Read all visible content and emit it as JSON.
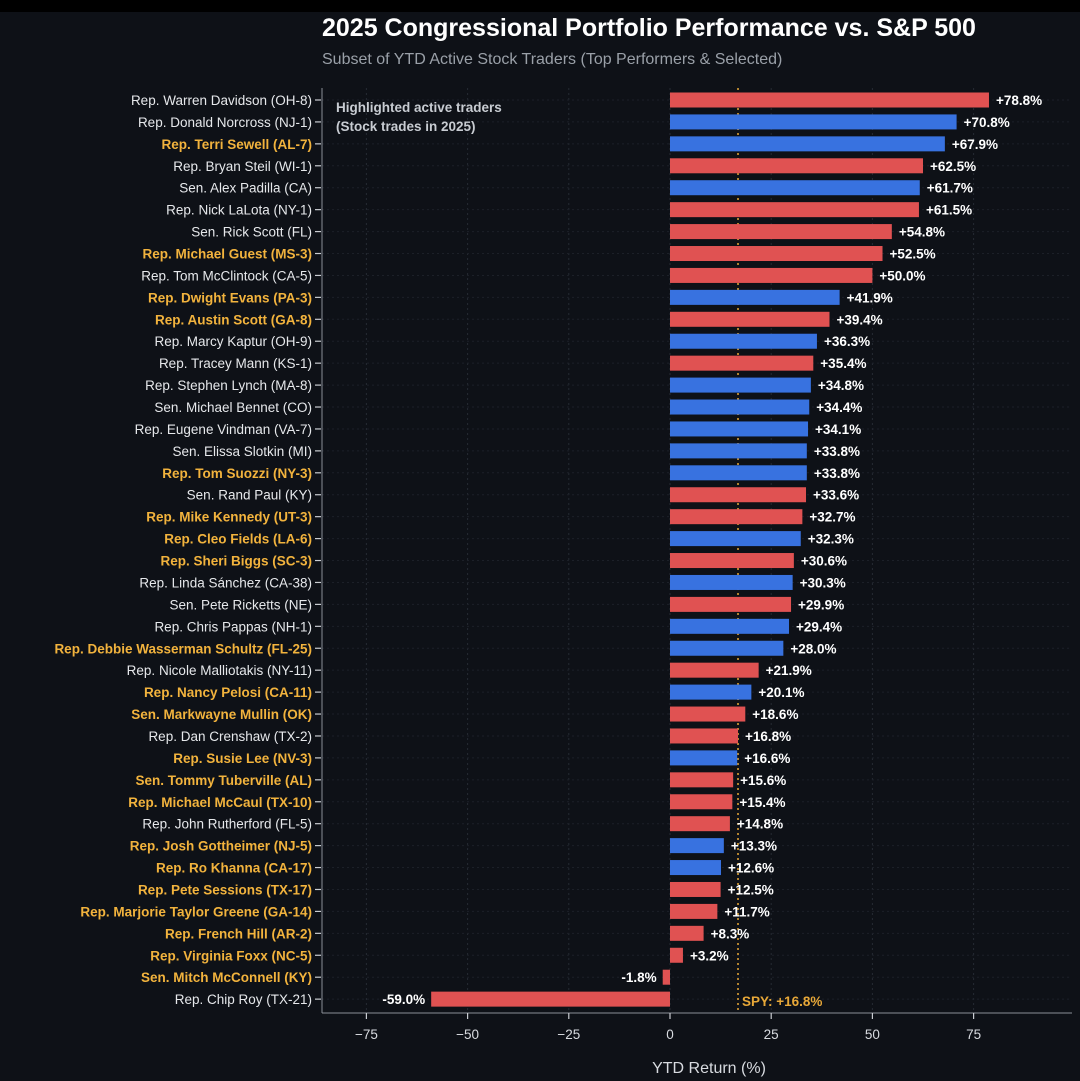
{
  "header": {
    "title": "2025 Congressional Portfolio Performance vs. S&P 500",
    "subtitle": "Subset of YTD Active Stock Traders (Top Performers & Selected)"
  },
  "annotation": {
    "line1": "Highlighted active traders",
    "line2": "(Stock trades in 2025)"
  },
  "spy_label": "SPY: +16.8%",
  "colors": {
    "background": "#0e1117",
    "republican": "#e05252",
    "democrat": "#3872e0",
    "highlight": "#f2b33d",
    "normal_label": "#e6e8eb",
    "spy_line": "#e8a838"
  },
  "chart_data": {
    "type": "bar",
    "orientation": "horizontal",
    "xlabel": "YTD Return (%)",
    "xlim": [
      -87,
      97
    ],
    "xticks": [
      -75,
      -50,
      -25,
      0,
      25,
      50,
      75
    ],
    "xtick_labels": [
      "−75",
      "−50",
      "−25",
      "0",
      "25",
      "50",
      "75"
    ],
    "reference_line": {
      "value": 16.8,
      "label": "SPY: +16.8%"
    },
    "grid": true,
    "bars": [
      {
        "name": "Rep. Warren Davidson (OH-8)",
        "value": 78.8,
        "label": "+78.8%",
        "party": "R",
        "highlighted": false
      },
      {
        "name": "Rep. Donald Norcross (NJ-1)",
        "value": 70.8,
        "label": "+70.8%",
        "party": "D",
        "highlighted": false
      },
      {
        "name": "Rep. Terri Sewell (AL-7)",
        "value": 67.9,
        "label": "+67.9%",
        "party": "D",
        "highlighted": true
      },
      {
        "name": "Rep. Bryan Steil (WI-1)",
        "value": 62.5,
        "label": "+62.5%",
        "party": "R",
        "highlighted": false
      },
      {
        "name": "Sen. Alex Padilla (CA)",
        "value": 61.7,
        "label": "+61.7%",
        "party": "D",
        "highlighted": false
      },
      {
        "name": "Rep. Nick LaLota (NY-1)",
        "value": 61.5,
        "label": "+61.5%",
        "party": "R",
        "highlighted": false
      },
      {
        "name": "Sen. Rick Scott (FL)",
        "value": 54.8,
        "label": "+54.8%",
        "party": "R",
        "highlighted": false
      },
      {
        "name": "Rep. Michael Guest (MS-3)",
        "value": 52.5,
        "label": "+52.5%",
        "party": "R",
        "highlighted": true
      },
      {
        "name": "Rep. Tom McClintock (CA-5)",
        "value": 50.0,
        "label": "+50.0%",
        "party": "R",
        "highlighted": false
      },
      {
        "name": "Rep. Dwight Evans (PA-3)",
        "value": 41.9,
        "label": "+41.9%",
        "party": "D",
        "highlighted": true
      },
      {
        "name": "Rep. Austin Scott (GA-8)",
        "value": 39.4,
        "label": "+39.4%",
        "party": "R",
        "highlighted": true
      },
      {
        "name": "Rep. Marcy Kaptur (OH-9)",
        "value": 36.3,
        "label": "+36.3%",
        "party": "D",
        "highlighted": false
      },
      {
        "name": "Rep. Tracey Mann (KS-1)",
        "value": 35.4,
        "label": "+35.4%",
        "party": "R",
        "highlighted": false
      },
      {
        "name": "Rep. Stephen Lynch (MA-8)",
        "value": 34.8,
        "label": "+34.8%",
        "party": "D",
        "highlighted": false
      },
      {
        "name": "Sen. Michael Bennet (CO)",
        "value": 34.4,
        "label": "+34.4%",
        "party": "D",
        "highlighted": false
      },
      {
        "name": "Rep. Eugene Vindman (VA-7)",
        "value": 34.1,
        "label": "+34.1%",
        "party": "D",
        "highlighted": false
      },
      {
        "name": "Sen. Elissa Slotkin (MI)",
        "value": 33.8,
        "label": "+33.8%",
        "party": "D",
        "highlighted": false
      },
      {
        "name": "Rep. Tom Suozzi (NY-3)",
        "value": 33.8,
        "label": "+33.8%",
        "party": "D",
        "highlighted": true
      },
      {
        "name": "Sen. Rand Paul (KY)",
        "value": 33.6,
        "label": "+33.6%",
        "party": "R",
        "highlighted": false
      },
      {
        "name": "Rep. Mike Kennedy (UT-3)",
        "value": 32.7,
        "label": "+32.7%",
        "party": "R",
        "highlighted": true
      },
      {
        "name": "Rep. Cleo Fields (LA-6)",
        "value": 32.3,
        "label": "+32.3%",
        "party": "D",
        "highlighted": true
      },
      {
        "name": "Rep. Sheri Biggs (SC-3)",
        "value": 30.6,
        "label": "+30.6%",
        "party": "R",
        "highlighted": true
      },
      {
        "name": "Rep. Linda Sánchez (CA-38)",
        "value": 30.3,
        "label": "+30.3%",
        "party": "D",
        "highlighted": false
      },
      {
        "name": "Sen. Pete Ricketts (NE)",
        "value": 29.9,
        "label": "+29.9%",
        "party": "R",
        "highlighted": false
      },
      {
        "name": "Rep. Chris Pappas (NH-1)",
        "value": 29.4,
        "label": "+29.4%",
        "party": "D",
        "highlighted": false
      },
      {
        "name": "Rep. Debbie Wasserman Schultz (FL-25)",
        "value": 28.0,
        "label": "+28.0%",
        "party": "D",
        "highlighted": true
      },
      {
        "name": "Rep. Nicole Malliotakis (NY-11)",
        "value": 21.9,
        "label": "+21.9%",
        "party": "R",
        "highlighted": false
      },
      {
        "name": "Rep. Nancy Pelosi (CA-11)",
        "value": 20.1,
        "label": "+20.1%",
        "party": "D",
        "highlighted": true
      },
      {
        "name": "Sen. Markwayne Mullin (OK)",
        "value": 18.6,
        "label": "+18.6%",
        "party": "R",
        "highlighted": true
      },
      {
        "name": "Rep. Dan Crenshaw (TX-2)",
        "value": 16.8,
        "label": "+16.8%",
        "party": "R",
        "highlighted": false
      },
      {
        "name": "Rep. Susie Lee (NV-3)",
        "value": 16.6,
        "label": "+16.6%",
        "party": "D",
        "highlighted": true
      },
      {
        "name": "Sen. Tommy Tuberville (AL)",
        "value": 15.6,
        "label": "+15.6%",
        "party": "R",
        "highlighted": true
      },
      {
        "name": "Rep. Michael McCaul (TX-10)",
        "value": 15.4,
        "label": "+15.4%",
        "party": "R",
        "highlighted": true
      },
      {
        "name": "Rep. John Rutherford (FL-5)",
        "value": 14.8,
        "label": "+14.8%",
        "party": "R",
        "highlighted": false
      },
      {
        "name": "Rep. Josh Gottheimer (NJ-5)",
        "value": 13.3,
        "label": "+13.3%",
        "party": "D",
        "highlighted": true
      },
      {
        "name": "Rep. Ro Khanna (CA-17)",
        "value": 12.6,
        "label": "+12.6%",
        "party": "D",
        "highlighted": true
      },
      {
        "name": "Rep. Pete Sessions (TX-17)",
        "value": 12.5,
        "label": "+12.5%",
        "party": "R",
        "highlighted": true
      },
      {
        "name": "Rep. Marjorie Taylor Greene (GA-14)",
        "value": 11.7,
        "label": "+11.7%",
        "party": "R",
        "highlighted": true
      },
      {
        "name": "Rep. French Hill (AR-2)",
        "value": 8.3,
        "label": "+8.3%",
        "party": "R",
        "highlighted": true
      },
      {
        "name": "Rep. Virginia Foxx (NC-5)",
        "value": 3.2,
        "label": "+3.2%",
        "party": "R",
        "highlighted": true
      },
      {
        "name": "Sen. Mitch McConnell (KY)",
        "value": -1.8,
        "label": "-1.8%",
        "party": "R",
        "highlighted": true
      },
      {
        "name": "Rep. Chip Roy (TX-21)",
        "value": -59.0,
        "label": "-59.0%",
        "party": "R",
        "highlighted": false
      }
    ]
  }
}
